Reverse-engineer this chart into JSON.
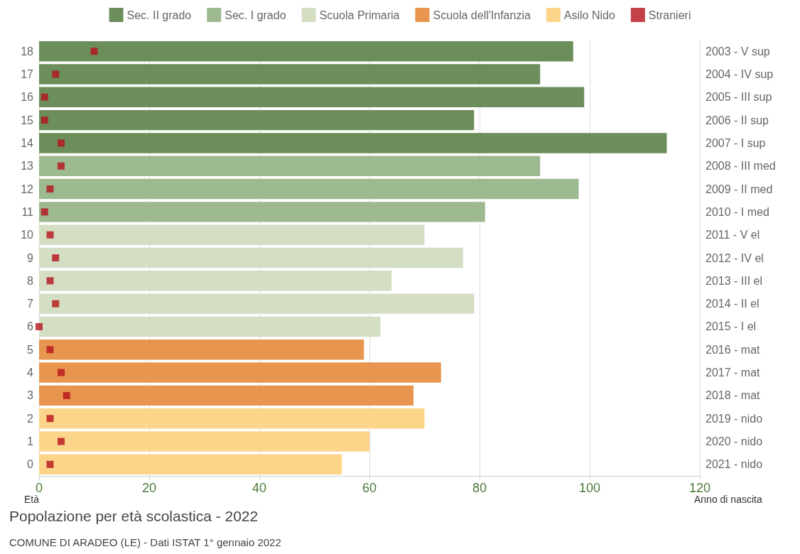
{
  "chart_data": {
    "type": "bar",
    "orientation": "horizontal",
    "title": "Popolazione per età scolastica - 2022",
    "ylabel": "Età",
    "y2label": "Anno di nascita",
    "categories": [
      "18",
      "17",
      "16",
      "15",
      "14",
      "13",
      "12",
      "11",
      "10",
      "9",
      "8",
      "7",
      "6",
      "5",
      "4",
      "3",
      "2",
      "1",
      "0"
    ],
    "y2_categories": [
      "2003 - V sup",
      "2004 - IV sup",
      "2005 - III sup",
      "2006 - II sup",
      "2007 - I sup",
      "2008 - III med",
      "2009 - II med",
      "2010 - I med",
      "2011 - V el",
      "2012 - IV el",
      "2013 - III el",
      "2014 - II el",
      "2015 - I el",
      "2016 - mat",
      "2017 - mat",
      "2018 - mat",
      "2019 - nido",
      "2020 - nido",
      "2021 - nido"
    ],
    "series": [
      {
        "name": "Sec. II grado",
        "color": "#6b8e5a",
        "values": [
          97,
          91,
          99,
          79,
          114,
          null,
          null,
          null,
          null,
          null,
          null,
          null,
          null,
          null,
          null,
          null,
          null,
          null,
          null
        ]
      },
      {
        "name": "Sec. I grado",
        "color": "#9cb98f",
        "values": [
          null,
          null,
          null,
          null,
          null,
          91,
          98,
          81,
          null,
          null,
          null,
          null,
          null,
          null,
          null,
          null,
          null,
          null,
          null
        ]
      },
      {
        "name": "Scuola Primaria",
        "color": "#d3dec3",
        "values": [
          null,
          null,
          null,
          null,
          null,
          null,
          null,
          null,
          70,
          77,
          64,
          79,
          62,
          null,
          null,
          null,
          null,
          null,
          null
        ]
      },
      {
        "name": "Scuola dell'Infanzia",
        "color": "#e8954f",
        "values": [
          null,
          null,
          null,
          null,
          null,
          null,
          null,
          null,
          null,
          null,
          null,
          null,
          null,
          59,
          73,
          68,
          null,
          null,
          null
        ]
      },
      {
        "name": "Asilo Nido",
        "color": "#fdd58a",
        "values": [
          null,
          null,
          null,
          null,
          null,
          null,
          null,
          null,
          null,
          null,
          null,
          null,
          null,
          null,
          null,
          null,
          70,
          60,
          55
        ]
      },
      {
        "name": "Stranieri",
        "type": "scatter",
        "color": "#b5121b",
        "values": [
          10,
          3,
          1,
          1,
          4,
          4,
          2,
          1,
          2,
          3,
          2,
          3,
          0,
          2,
          4,
          5,
          2,
          4,
          2
        ]
      }
    ],
    "marker": "square",
    "xlim": [
      0,
      120
    ],
    "xticks": [
      0,
      20,
      40,
      60,
      80,
      100,
      120
    ],
    "grid": "x",
    "legend": "top",
    "annotations": [
      "COMUNE DI ARADEO (LE) - Dati ISTAT 1° gennaio 2022"
    ]
  }
}
